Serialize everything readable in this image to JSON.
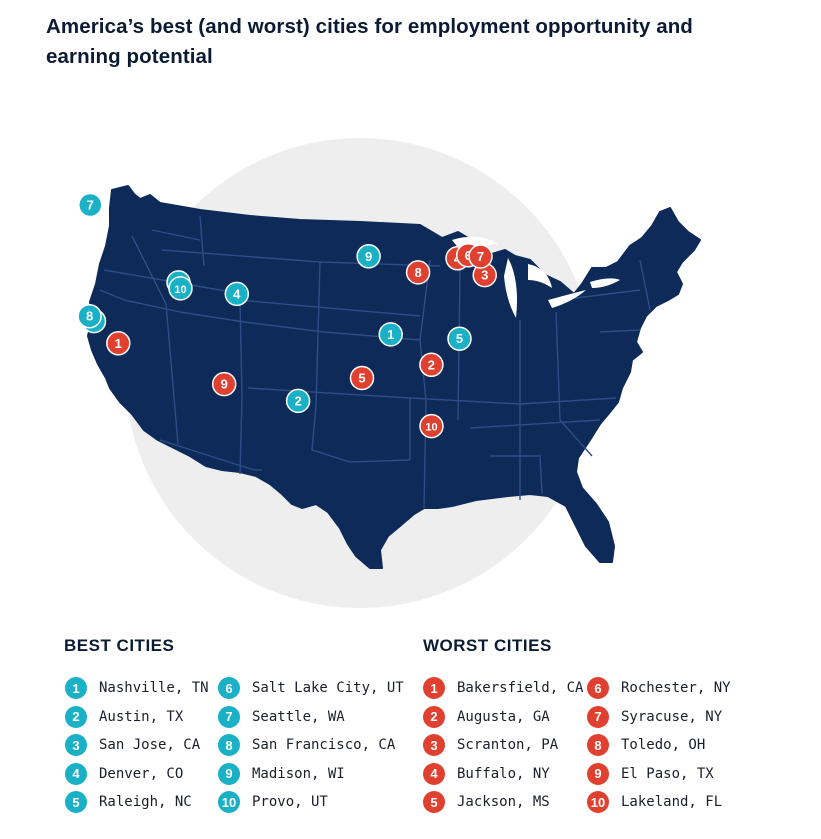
{
  "title": "America’s best (and worst) cities for employment opportunity and earning potential",
  "colors": {
    "best": "#1ab0c6",
    "worst": "#e0402f",
    "map": "#0d2a58",
    "circle": "#eeeeee"
  },
  "legend": {
    "best_title": "BEST CITIES",
    "worst_title": "WORST CITIES",
    "best": [
      {
        "rank": "1",
        "label": "Nashville, TN"
      },
      {
        "rank": "2",
        "label": "Austin, TX"
      },
      {
        "rank": "3",
        "label": "San Jose, CA"
      },
      {
        "rank": "4",
        "label": "Denver, CO"
      },
      {
        "rank": "5",
        "label": "Raleigh, NC"
      },
      {
        "rank": "6",
        "label": "Salt Lake City, UT"
      },
      {
        "rank": "7",
        "label": "Seattle, WA"
      },
      {
        "rank": "8",
        "label": "San Francisco, CA"
      },
      {
        "rank": "9",
        "label": "Madison, WI"
      },
      {
        "rank": "10",
        "label": "Provo, UT"
      }
    ],
    "worst": [
      {
        "rank": "1",
        "label": "Bakersfield, CA"
      },
      {
        "rank": "2",
        "label": "Augusta, GA"
      },
      {
        "rank": "3",
        "label": "Scranton, PA"
      },
      {
        "rank": "4",
        "label": "Buffalo, NY"
      },
      {
        "rank": "5",
        "label": "Jackson, MS"
      },
      {
        "rank": "6",
        "label": "Rochester, NY"
      },
      {
        "rank": "7",
        "label": "Syracuse, NY"
      },
      {
        "rank": "8",
        "label": "Toledo, OH"
      },
      {
        "rank": "9",
        "label": "El Paso, TX"
      },
      {
        "rank": "10",
        "label": "Lakeland, FL"
      }
    ]
  },
  "markers": {
    "best": [
      {
        "rank": "1",
        "lat": 36.16,
        "lon": -86.78
      },
      {
        "rank": "2",
        "lat": 30.27,
        "lon": -97.74
      },
      {
        "rank": "3",
        "lat": 37.34,
        "lon": -121.89
      },
      {
        "rank": "4",
        "lat": 39.74,
        "lon": -104.99
      },
      {
        "rank": "5",
        "lat": 35.78,
        "lon": -78.64
      },
      {
        "rank": "6",
        "lat": 40.76,
        "lon": -111.89
      },
      {
        "rank": "7",
        "lat": 47.61,
        "lon": -122.33
      },
      {
        "rank": "8",
        "lat": 37.77,
        "lon": -122.42
      },
      {
        "rank": "9",
        "lat": 43.07,
        "lon": -89.4
      },
      {
        "rank": "10",
        "lat": 40.23,
        "lon": -111.66
      }
    ],
    "worst": [
      {
        "rank": "1",
        "lat": 35.37,
        "lon": -119.02
      },
      {
        "rank": "2",
        "lat": 33.47,
        "lon": -81.97
      },
      {
        "rank": "3",
        "lat": 41.41,
        "lon": -75.66
      },
      {
        "rank": "4",
        "lat": 42.89,
        "lon": -78.88
      },
      {
        "rank": "5",
        "lat": 32.3,
        "lon": -90.18
      },
      {
        "rank": "6",
        "lat": 43.16,
        "lon": -77.61
      },
      {
        "rank": "7",
        "lat": 43.05,
        "lon": -76.15
      },
      {
        "rank": "8",
        "lat": 41.65,
        "lon": -83.54
      },
      {
        "rank": "9",
        "lat": 31.76,
        "lon": -106.49
      },
      {
        "rank": "10",
        "lat": 28.04,
        "lon": -81.95
      }
    ]
  }
}
